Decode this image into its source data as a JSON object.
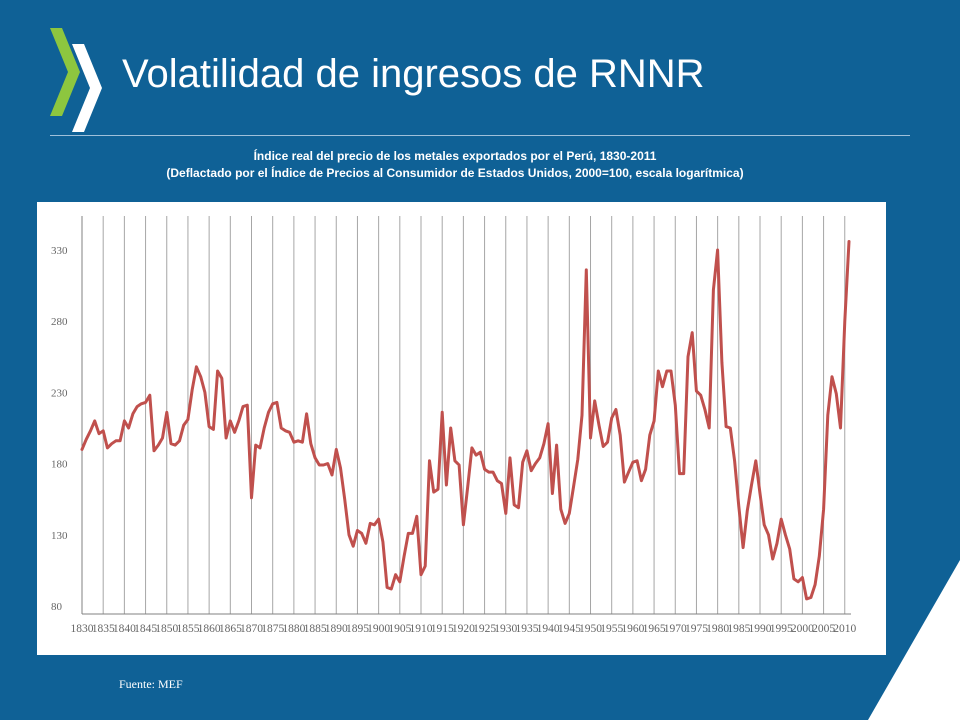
{
  "page": {
    "title": "Volatilidad de ingresos de RNNR",
    "source": "Fuente: MEF",
    "colors": {
      "background": "#0f6196",
      "logo_green": "#8dc63f",
      "series": "#c0504d"
    }
  },
  "chart_data": {
    "type": "line",
    "title": "Índice real del precio de los metales exportados  por el Perú, 1830-2011",
    "subtitle": "(Deflactado  por el Índice de Precios al Consumidor de Estados Unidos, 2000=100,  escala logarítmica)",
    "xlabel": "",
    "ylabel": "",
    "ylim": [
      80,
      330
    ],
    "y_ticks": [
      80,
      130,
      180,
      230,
      280,
      330
    ],
    "y_tick_labels": [
      "80",
      "130",
      "180",
      "230",
      "280",
      "330"
    ],
    "x_ticks": [
      1830,
      1835,
      1840,
      1845,
      1850,
      1855,
      1860,
      1865,
      1870,
      1875,
      1880,
      1885,
      1890,
      1895,
      1900,
      1905,
      1910,
      1915,
      1920,
      1925,
      1930,
      1935,
      1940,
      1945,
      1950,
      1955,
      1960,
      1965,
      1970,
      1975,
      1980,
      1985,
      1990,
      1995,
      2000,
      2005,
      2010
    ],
    "x_tick_labels": [
      "1830",
      "1835",
      "1840",
      "1845",
      "1850",
      "1855",
      "1860",
      "1865",
      "1870",
      "1875",
      "1880",
      "1885",
      "1890",
      "1895",
      "1900",
      "1905",
      "1910",
      "1915",
      "1920",
      "1925",
      "1930",
      "1935",
      "1940",
      "1945",
      "1950",
      "1955",
      "1960",
      "1965",
      "1970",
      "1975",
      "1980",
      "1985",
      "1990",
      "1995",
      "2000",
      "2005",
      "2010"
    ],
    "grid": "vertical",
    "legend": "none",
    "series": [
      {
        "color": "#c0504d",
        "x": [
          1830,
          1831,
          1832,
          1833,
          1834,
          1835,
          1836,
          1837,
          1838,
          1839,
          1840,
          1841,
          1842,
          1843,
          1844,
          1845,
          1846,
          1847,
          1848,
          1849,
          1850,
          1851,
          1852,
          1853,
          1854,
          1855,
          1856,
          1857,
          1858,
          1859,
          1860,
          1861,
          1862,
          1863,
          1864,
          1865,
          1866,
          1867,
          1868,
          1869,
          1870,
          1871,
          1872,
          1873,
          1874,
          1875,
          1876,
          1877,
          1878,
          1879,
          1880,
          1881,
          1882,
          1883,
          1884,
          1885,
          1886,
          1887,
          1888,
          1889,
          1890,
          1891,
          1892,
          1893,
          1894,
          1895,
          1896,
          1897,
          1898,
          1899,
          1900,
          1901,
          1902,
          1903,
          1904,
          1905,
          1906,
          1907,
          1908,
          1909,
          1910,
          1911,
          1912,
          1913,
          1914,
          1915,
          1916,
          1917,
          1918,
          1919,
          1920,
          1921,
          1922,
          1923,
          1924,
          1925,
          1926,
          1927,
          1928,
          1929,
          1930,
          1931,
          1932,
          1933,
          1934,
          1935,
          1936,
          1937,
          1938,
          1939,
          1940,
          1941,
          1942,
          1943,
          1944,
          1945,
          1946,
          1947,
          1948,
          1949,
          1950,
          1951,
          1952,
          1953,
          1954,
          1955,
          1956,
          1957,
          1958,
          1959,
          1960,
          1961,
          1962,
          1963,
          1964,
          1965,
          1966,
          1967,
          1968,
          1969,
          1970,
          1971,
          1972,
          1973,
          1974,
          1975,
          1976,
          1977,
          1978,
          1979,
          1980,
          1981,
          1982,
          1983,
          1984,
          1985,
          1986,
          1987,
          1988,
          1989,
          1990,
          1991,
          1992,
          1993,
          1994,
          1995,
          1996,
          1997,
          1998,
          1999,
          2000,
          2001,
          2002,
          2003,
          2004,
          2005,
          2006,
          2007,
          2008,
          2009,
          2010,
          2011
        ],
        "y": [
          190,
          197,
          203,
          210,
          201,
          203,
          191,
          194,
          196,
          196,
          210,
          205,
          215,
          220,
          222,
          223,
          228,
          189,
          193,
          198,
          216,
          194,
          193,
          196,
          207,
          211,
          232,
          248,
          241,
          230,
          206,
          204,
          245,
          240,
          198,
          210,
          202,
          210,
          220,
          221,
          156,
          193,
          191,
          205,
          216,
          222,
          223,
          205,
          203,
          202,
          195,
          196,
          195,
          215,
          194,
          184,
          179,
          179,
          180,
          172,
          190,
          177,
          155,
          130,
          122,
          133,
          131,
          124,
          138,
          137,
          141,
          125,
          93,
          92,
          102,
          97,
          115,
          131,
          131,
          143,
          102,
          108,
          182,
          160,
          162,
          216,
          165,
          205,
          182,
          179,
          137,
          163,
          191,
          186,
          188,
          176,
          174,
          174,
          168,
          166,
          145,
          184,
          151,
          149,
          181,
          189,
          175,
          180,
          184,
          194,
          208,
          159,
          193,
          148,
          138,
          145,
          164,
          183,
          214,
          316,
          198,
          224,
          207,
          192,
          195,
          212,
          218,
          200,
          167,
          174,
          181,
          182,
          168,
          176,
          200,
          210,
          245,
          234,
          245,
          245,
          221,
          173,
          173,
          255,
          272,
          231,
          228,
          218,
          205,
          302,
          330,
          251,
          206,
          205,
          182,
          150,
          121,
          147,
          165,
          182,
          159,
          137,
          130,
          113,
          124,
          141,
          130,
          120,
          99,
          97,
          100,
          85,
          86,
          95,
          115,
          148,
          214,
          241,
          229,
          205,
          280,
          336
        ]
      }
    ]
  }
}
